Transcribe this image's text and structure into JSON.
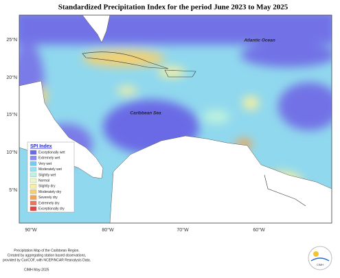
{
  "title": "Standardized Precipitation Index for the period June 2023 to May 2025",
  "latitude_labels": [
    "25°N",
    "20°N",
    "15°N",
    "10°N",
    "5°N"
  ],
  "longitude_labels": [
    "90°W",
    "80°W",
    "70°W",
    "60°W"
  ],
  "map_labels": {
    "atlantic": "Atlantic Ocean",
    "caribbean": "Caribbean Sea"
  },
  "legend": {
    "title": "SPI Index",
    "items": [
      {
        "label": "Exceptionally wet",
        "color": "#6a6ae6"
      },
      {
        "label": "Extremely wet",
        "color": "#8a8cf2"
      },
      {
        "label": "Very wet",
        "color": "#78c8f0"
      },
      {
        "label": "Moderately wet",
        "color": "#98e0f2"
      },
      {
        "label": "Slightly wet",
        "color": "#bdf2de"
      },
      {
        "label": "Normal",
        "color": "#eaf8c8"
      },
      {
        "label": "Slightly dry",
        "color": "#f6f0a0"
      },
      {
        "label": "Moderately dry",
        "color": "#f6d070"
      },
      {
        "label": "Severely dry",
        "color": "#f0a454"
      },
      {
        "label": "Extremely dry",
        "color": "#ea7462"
      },
      {
        "label": "Exceptionally dry",
        "color": "#e04444"
      }
    ]
  },
  "footer": {
    "lines": [
      "Precipitation Map of the Caribbean Region.",
      "Created by aggregating station based observations,",
      "provided by CariCOF, with NCEP/NCAR Reanalysis Data."
    ],
    "date": "CIMH May-2025"
  },
  "logo": {
    "text": "CIMH"
  }
}
